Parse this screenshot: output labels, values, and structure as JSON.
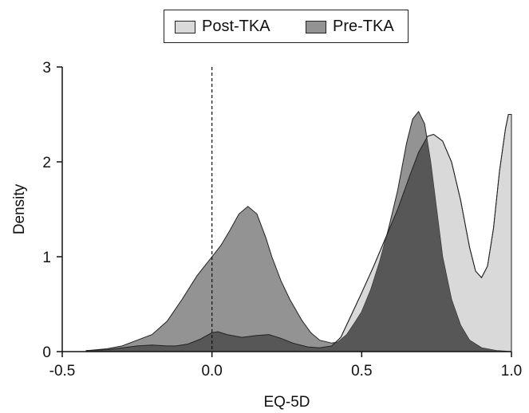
{
  "chart_data": {
    "type": "area",
    "xlabel": "EQ-5D",
    "ylabel": "Density",
    "xlim": [
      -0.5,
      1.0
    ],
    "ylim": [
      0,
      3
    ],
    "x_ticks": [
      -0.5,
      0.0,
      0.5,
      1.0
    ],
    "x_tick_labels": [
      "-0.5",
      "0.0",
      "0.5",
      "1.0"
    ],
    "y_ticks": [
      0,
      1,
      2,
      3
    ],
    "y_tick_labels": [
      "0",
      "1",
      "2",
      "3"
    ],
    "reference_line": {
      "x": 0.0,
      "style": "dashed"
    },
    "legend_position": "top-center",
    "legend": [
      "Post-TKA",
      "Pre-TKA"
    ],
    "series": [
      {
        "name": "Pre-TKA",
        "color": "#939393",
        "points": [
          [
            -0.42,
            0.01
          ],
          [
            -0.35,
            0.03
          ],
          [
            -0.3,
            0.06
          ],
          [
            -0.25,
            0.12
          ],
          [
            -0.2,
            0.18
          ],
          [
            -0.15,
            0.32
          ],
          [
            -0.1,
            0.55
          ],
          [
            -0.05,
            0.8
          ],
          [
            0.0,
            1.0
          ],
          [
            0.03,
            1.12
          ],
          [
            0.06,
            1.28
          ],
          [
            0.09,
            1.45
          ],
          [
            0.12,
            1.53
          ],
          [
            0.15,
            1.45
          ],
          [
            0.18,
            1.2
          ],
          [
            0.2,
            1.0
          ],
          [
            0.23,
            0.75
          ],
          [
            0.26,
            0.55
          ],
          [
            0.3,
            0.33
          ],
          [
            0.33,
            0.2
          ],
          [
            0.36,
            0.12
          ],
          [
            0.4,
            0.09
          ],
          [
            0.42,
            0.1
          ],
          [
            0.45,
            0.18
          ],
          [
            0.48,
            0.32
          ],
          [
            0.5,
            0.42
          ],
          [
            0.53,
            0.65
          ],
          [
            0.56,
            0.95
          ],
          [
            0.59,
            1.3
          ],
          [
            0.62,
            1.7
          ],
          [
            0.65,
            2.2
          ],
          [
            0.67,
            2.45
          ],
          [
            0.69,
            2.53
          ],
          [
            0.71,
            2.4
          ],
          [
            0.73,
            2.0
          ],
          [
            0.75,
            1.5
          ],
          [
            0.77,
            1.0
          ],
          [
            0.8,
            0.55
          ],
          [
            0.83,
            0.28
          ],
          [
            0.86,
            0.12
          ],
          [
            0.9,
            0.04
          ],
          [
            0.95,
            0.01
          ],
          [
            1.0,
            0.0
          ]
        ]
      },
      {
        "name": "Post-TKA",
        "color": "#d9d9d9",
        "points": [
          [
            -0.42,
            0.01
          ],
          [
            -0.35,
            0.02
          ],
          [
            -0.3,
            0.04
          ],
          [
            -0.25,
            0.06
          ],
          [
            -0.2,
            0.07
          ],
          [
            -0.15,
            0.06
          ],
          [
            -0.12,
            0.06
          ],
          [
            -0.08,
            0.08
          ],
          [
            -0.04,
            0.13
          ],
          [
            0.0,
            0.2
          ],
          [
            0.02,
            0.21
          ],
          [
            0.05,
            0.18
          ],
          [
            0.1,
            0.15
          ],
          [
            0.15,
            0.17
          ],
          [
            0.19,
            0.18
          ],
          [
            0.23,
            0.14
          ],
          [
            0.27,
            0.09
          ],
          [
            0.32,
            0.05
          ],
          [
            0.36,
            0.04
          ],
          [
            0.4,
            0.06
          ],
          [
            0.43,
            0.15
          ],
          [
            0.46,
            0.35
          ],
          [
            0.5,
            0.62
          ],
          [
            0.54,
            0.9
          ],
          [
            0.58,
            1.2
          ],
          [
            0.62,
            1.5
          ],
          [
            0.66,
            1.85
          ],
          [
            0.69,
            2.1
          ],
          [
            0.72,
            2.27
          ],
          [
            0.74,
            2.29
          ],
          [
            0.77,
            2.22
          ],
          [
            0.8,
            2.0
          ],
          [
            0.83,
            1.6
          ],
          [
            0.86,
            1.1
          ],
          [
            0.88,
            0.85
          ],
          [
            0.9,
            0.78
          ],
          [
            0.92,
            0.9
          ],
          [
            0.94,
            1.3
          ],
          [
            0.96,
            1.9
          ],
          [
            0.98,
            2.35
          ],
          [
            0.99,
            2.5
          ],
          [
            1.0,
            2.5
          ],
          [
            1.0,
            0.02
          ]
        ]
      }
    ],
    "overlap_color": "#575757"
  }
}
